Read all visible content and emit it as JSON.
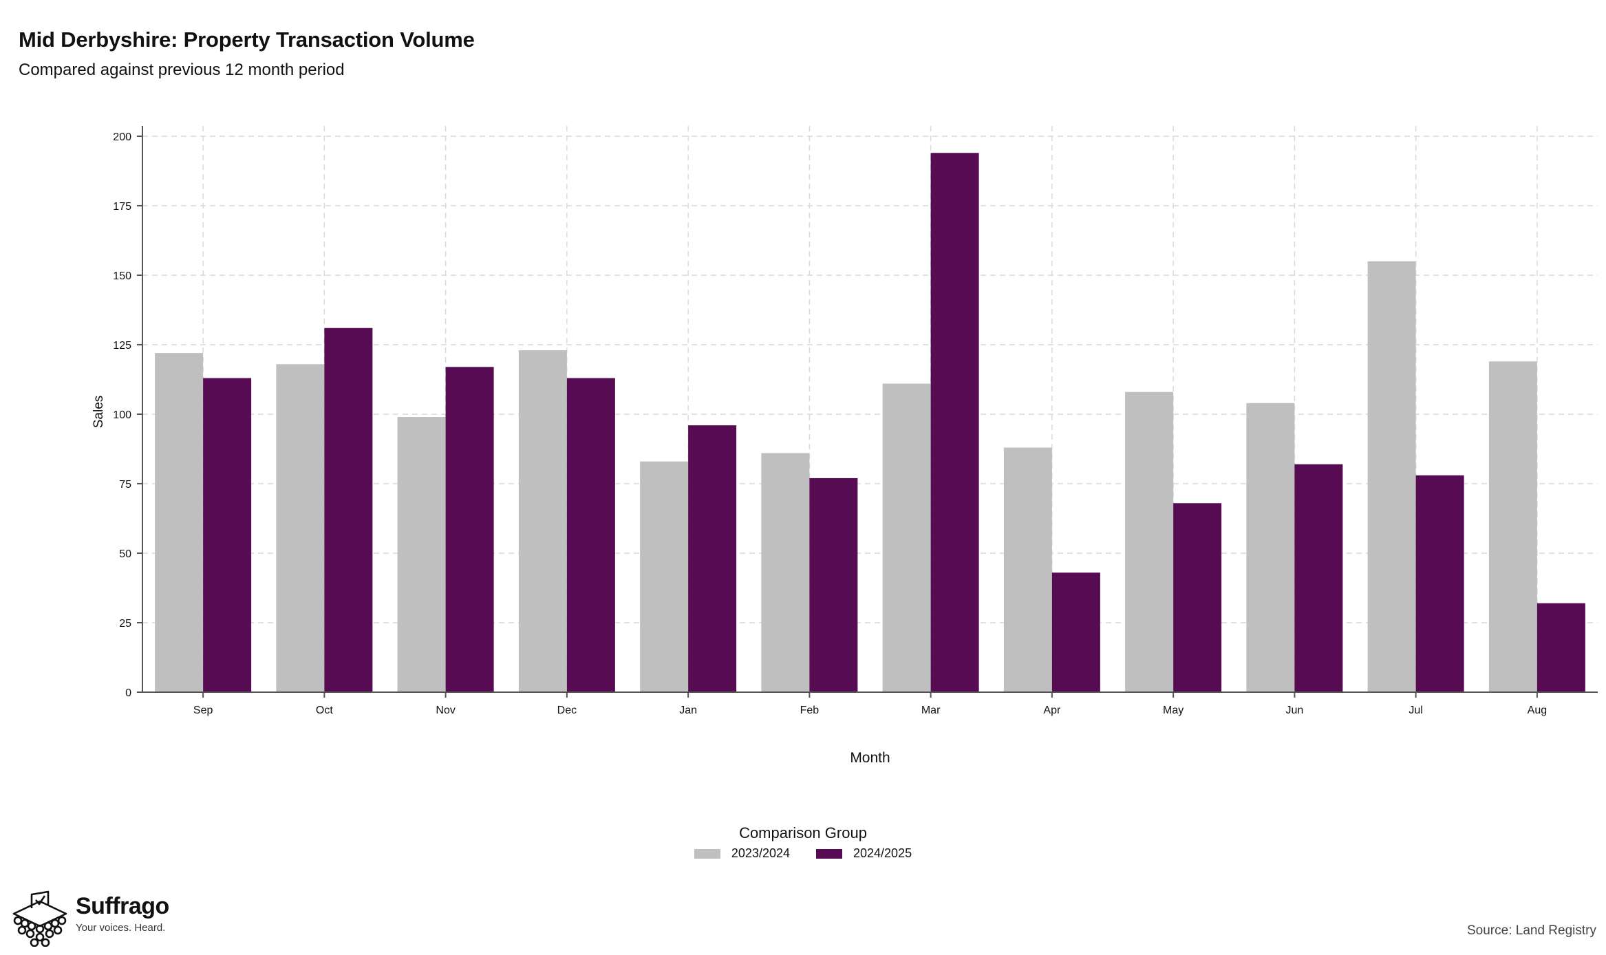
{
  "header": {
    "title": "Mid Derbyshire: Property Transaction Volume",
    "subtitle": "Compared against previous 12 month period"
  },
  "legend": {
    "title": "Comparison Group",
    "items": [
      {
        "label": "2023/2024",
        "color": "#bfbfbf"
      },
      {
        "label": "2024/2025",
        "color": "#560b52"
      }
    ]
  },
  "footer": {
    "brand_name": "Suffrago",
    "brand_tagline": "Your voices. Heard.",
    "source": "Source: Land Registry"
  },
  "chart_data": {
    "type": "bar",
    "xlabel": "Month",
    "ylabel": "Sales",
    "ylim": [
      0,
      200
    ],
    "yticks": [
      0,
      25,
      50,
      75,
      100,
      125,
      150,
      175,
      200
    ],
    "grid": true,
    "legend_position": "bottom",
    "categories": [
      "Sep",
      "Oct",
      "Nov",
      "Dec",
      "Jan",
      "Feb",
      "Mar",
      "Apr",
      "May",
      "Jun",
      "Jul",
      "Aug"
    ],
    "series": [
      {
        "name": "2023/2024",
        "color": "#bfbfbf",
        "values": [
          122,
          118,
          99,
          123,
          83,
          86,
          111,
          88,
          108,
          104,
          155,
          119
        ]
      },
      {
        "name": "2024/2025",
        "color": "#560b52",
        "values": [
          113,
          131,
          117,
          113,
          96,
          77,
          194,
          43,
          68,
          82,
          78,
          32
        ]
      }
    ]
  }
}
